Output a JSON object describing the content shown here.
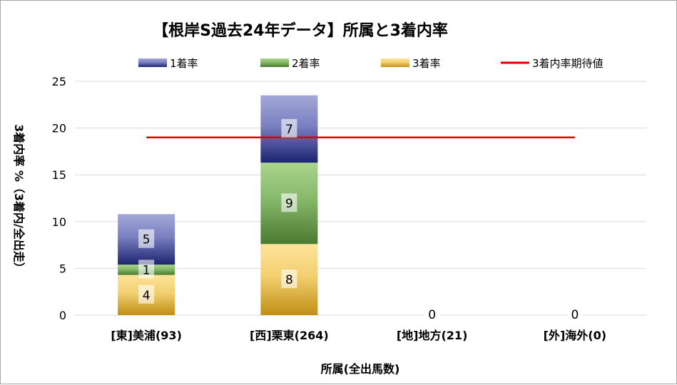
{
  "chart_data": {
    "type": "bar",
    "stacked": true,
    "title": "【根岸S過去24年データ】所属と3着内率",
    "xlabel": "所属(全出馬数)",
    "ylabel": "3着内率 %（3着内/全出走）",
    "ylim": [
      0,
      25
    ],
    "yticks": [
      0,
      5,
      10,
      15,
      20,
      25
    ],
    "grid": true,
    "legend_position": "top",
    "categories": [
      "[東]美浦(93)",
      "[西]栗東(264)",
      "[地]地方(21)",
      "[外]海外(0)"
    ],
    "series": [
      {
        "name": "1着率",
        "values": [
          5.4,
          7.2,
          0,
          0
        ],
        "labels": [
          "5",
          "7",
          "",
          ""
        ],
        "color": "#2e3a87"
      },
      {
        "name": "2着率",
        "values": [
          1.1,
          8.7,
          0,
          0
        ],
        "labels": [
          "1",
          "9",
          "",
          ""
        ],
        "color": "#6a9e45"
      },
      {
        "name": "3着率",
        "values": [
          4.3,
          7.6,
          0,
          0
        ],
        "labels": [
          "4",
          "8",
          "0",
          "0"
        ],
        "color": "#d9a520"
      }
    ],
    "reference_line": {
      "name": "3着内率期待値",
      "value": 19,
      "color": "#e00000"
    }
  }
}
